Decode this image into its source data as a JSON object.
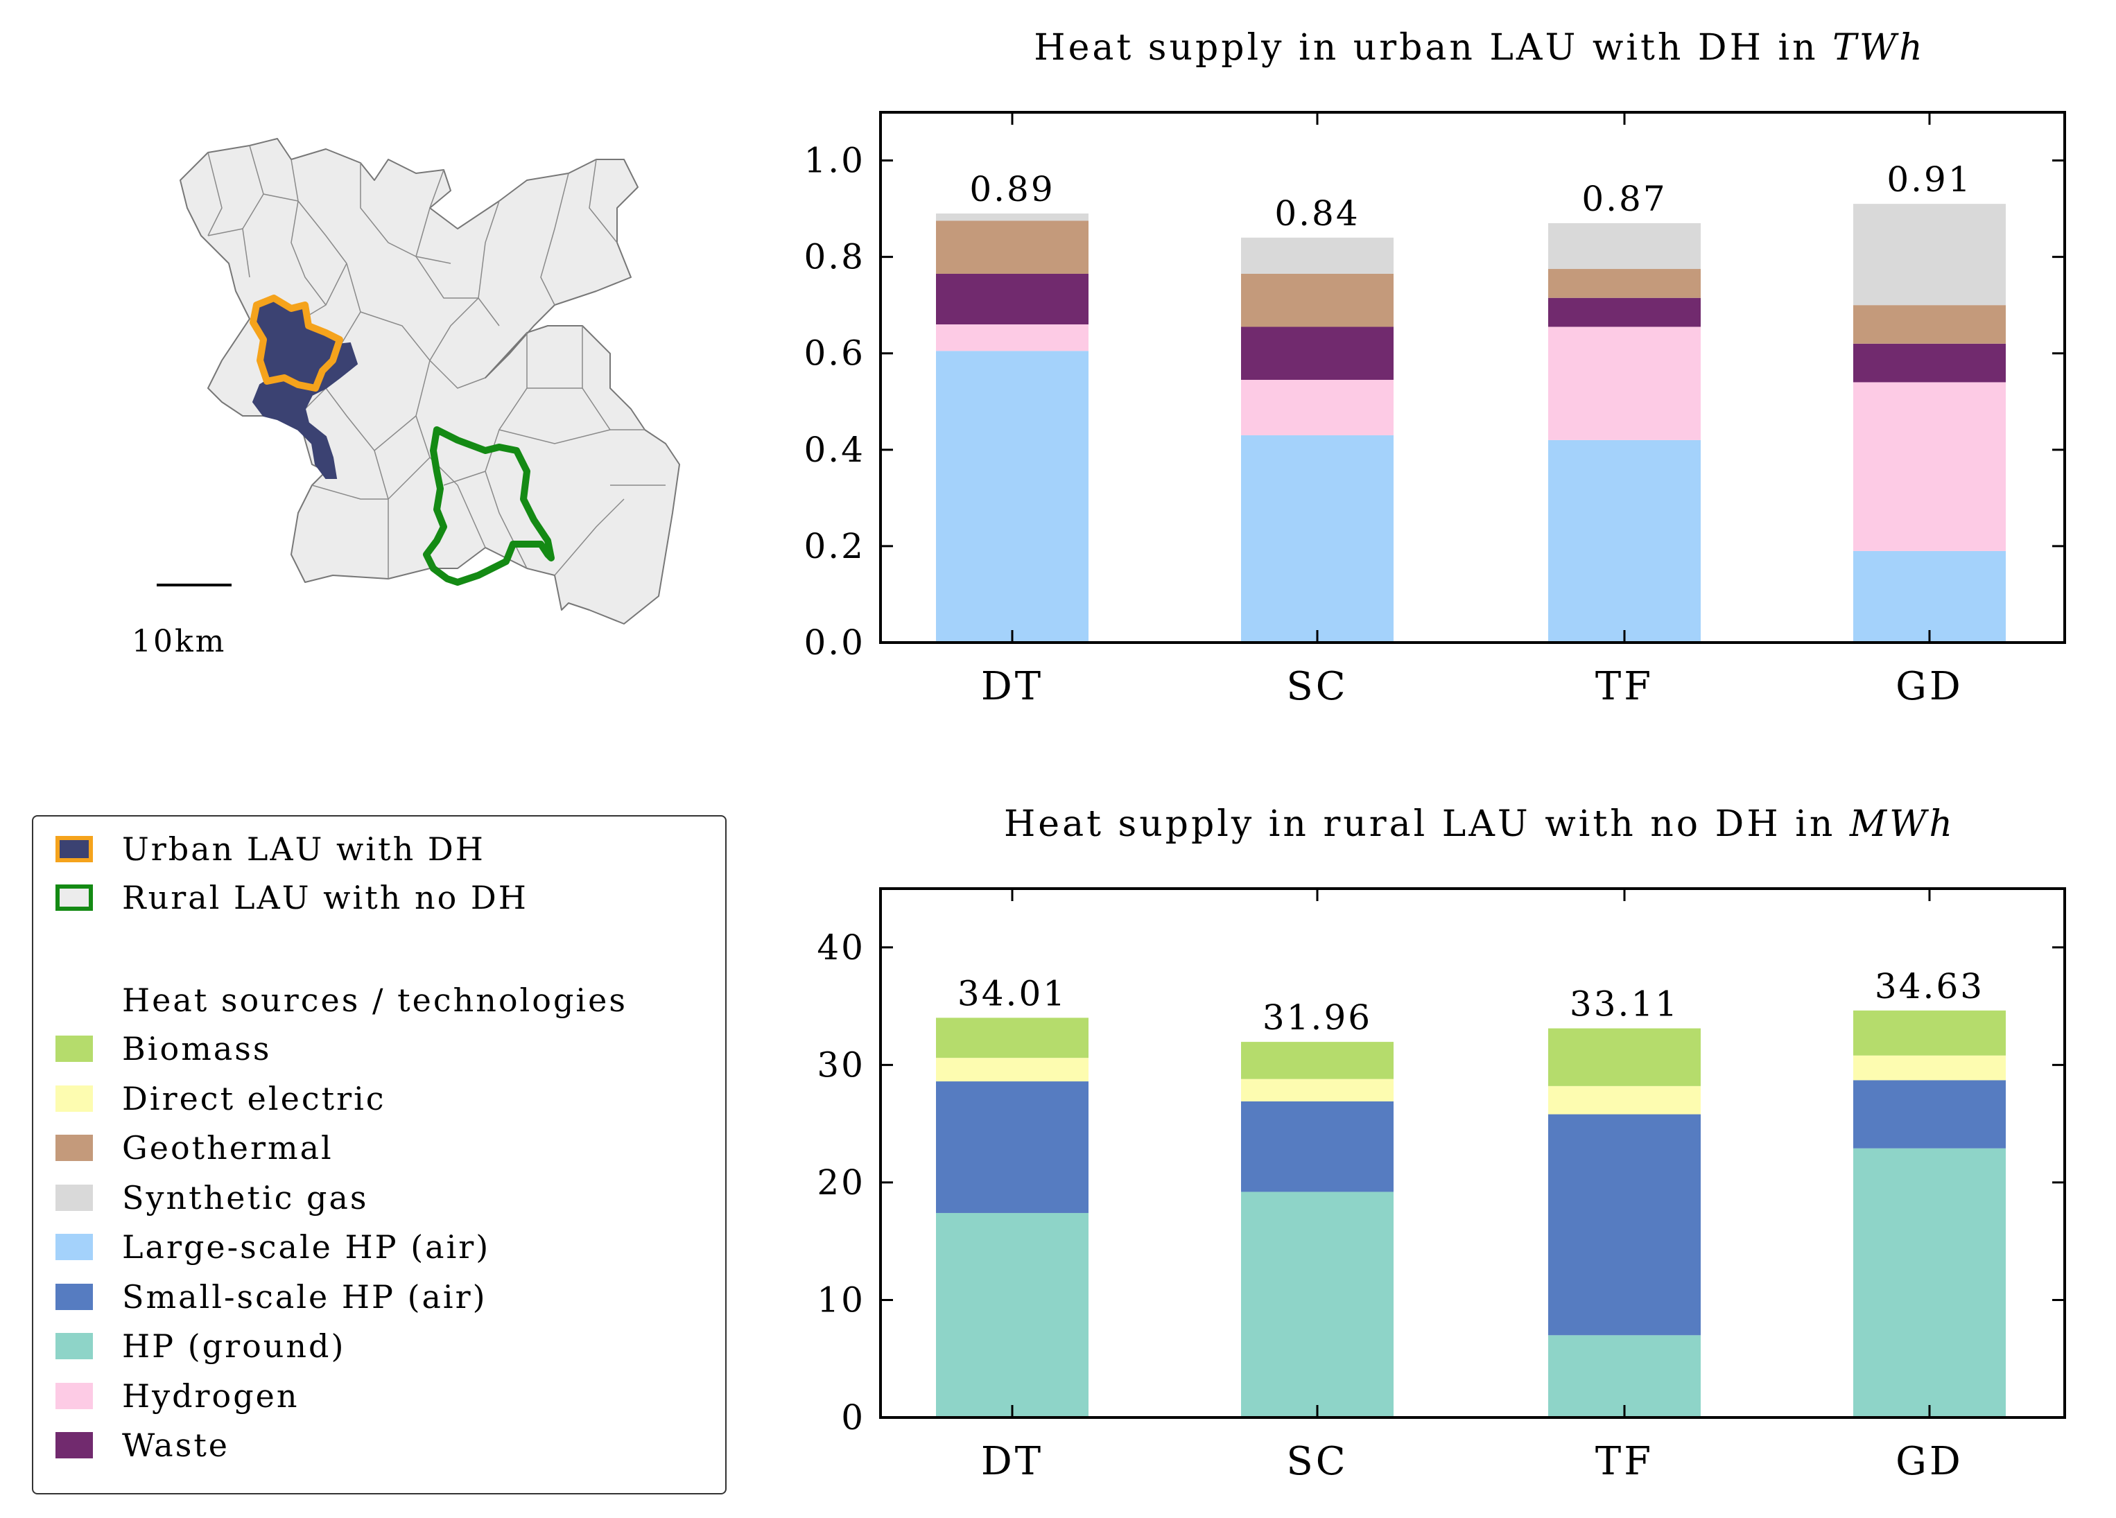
{
  "colors": {
    "Biomass": "#b5dc6c",
    "Direct electric": "#fdfcb0",
    "Geothermal": "#c49a7b",
    "Synthetic gas": "#d9d9d9",
    "Large-scale HP (air)": "#a4d2fb",
    "Small-scale HP (air)": "#567cc1",
    "HP (ground)": "#8ed4c8",
    "Hydrogen": "#fdcbe5",
    "Waste": "#712a6e",
    "urban_fill": "#3b4272",
    "urban_edge": "#f5a31c",
    "rural_fill": "#ececec",
    "rural_edge": "#148a14"
  },
  "map": {
    "scale_label": "10km"
  },
  "legend": {
    "region_items": [
      {
        "label": "Urban LAU with DH",
        "fill": "#3b4272",
        "edge": "#f5a31c"
      },
      {
        "label": "Rural LAU with no DH",
        "fill": "#ececec",
        "edge": "#148a14"
      }
    ],
    "tech_title": "Heat sources / technologies",
    "tech_items": [
      "Biomass",
      "Direct electric",
      "Geothermal",
      "Synthetic gas",
      "Large-scale HP (air)",
      "Small-scale HP (air)",
      "HP (ground)",
      "Hydrogen",
      "Waste"
    ]
  },
  "chart_data": [
    {
      "type": "bar",
      "stacked": true,
      "title": "Heat supply in urban LAU with DH in ",
      "title_unit": "TWh",
      "categories": [
        "DT",
        "SC",
        "TF",
        "GD"
      ],
      "ylim": [
        0,
        1.1
      ],
      "yticks": [
        0.0,
        0.2,
        0.4,
        0.6,
        0.8,
        1.0
      ],
      "ytick_labels": [
        "0.0",
        "0.2",
        "0.4",
        "0.6",
        "0.8",
        "1.0"
      ],
      "grid": false,
      "totals": [
        "0.89",
        "0.84",
        "0.87",
        "0.91"
      ],
      "series": [
        {
          "name": "Large-scale HP (air)",
          "values": [
            0.605,
            0.43,
            0.42,
            0.19
          ]
        },
        {
          "name": "Hydrogen",
          "values": [
            0.055,
            0.115,
            0.235,
            0.35
          ]
        },
        {
          "name": "Waste",
          "values": [
            0.105,
            0.11,
            0.06,
            0.08
          ]
        },
        {
          "name": "Geothermal",
          "values": [
            0.11,
            0.11,
            0.06,
            0.08
          ]
        },
        {
          "name": "Synthetic gas",
          "values": [
            0.015,
            0.075,
            0.095,
            0.21
          ]
        }
      ]
    },
    {
      "type": "bar",
      "stacked": true,
      "title": "Heat supply in rural LAU with no DH in ",
      "title_unit": "MWh",
      "categories": [
        "DT",
        "SC",
        "TF",
        "GD"
      ],
      "ylim": [
        0,
        45
      ],
      "yticks": [
        0,
        10,
        20,
        30,
        40
      ],
      "ytick_labels": [
        "0",
        "10",
        "20",
        "30",
        "40"
      ],
      "grid": false,
      "totals": [
        "34.01",
        "31.96",
        "33.11",
        "34.63"
      ],
      "series": [
        {
          "name": "HP (ground)",
          "values": [
            17.4,
            19.2,
            7.0,
            22.9
          ]
        },
        {
          "name": "Small-scale HP (air)",
          "values": [
            11.2,
            7.7,
            18.8,
            5.8
          ]
        },
        {
          "name": "Direct electric",
          "values": [
            2.0,
            1.9,
            2.4,
            2.1
          ]
        },
        {
          "name": "Biomass",
          "values": [
            3.41,
            3.16,
            4.91,
            3.83
          ]
        }
      ]
    }
  ]
}
